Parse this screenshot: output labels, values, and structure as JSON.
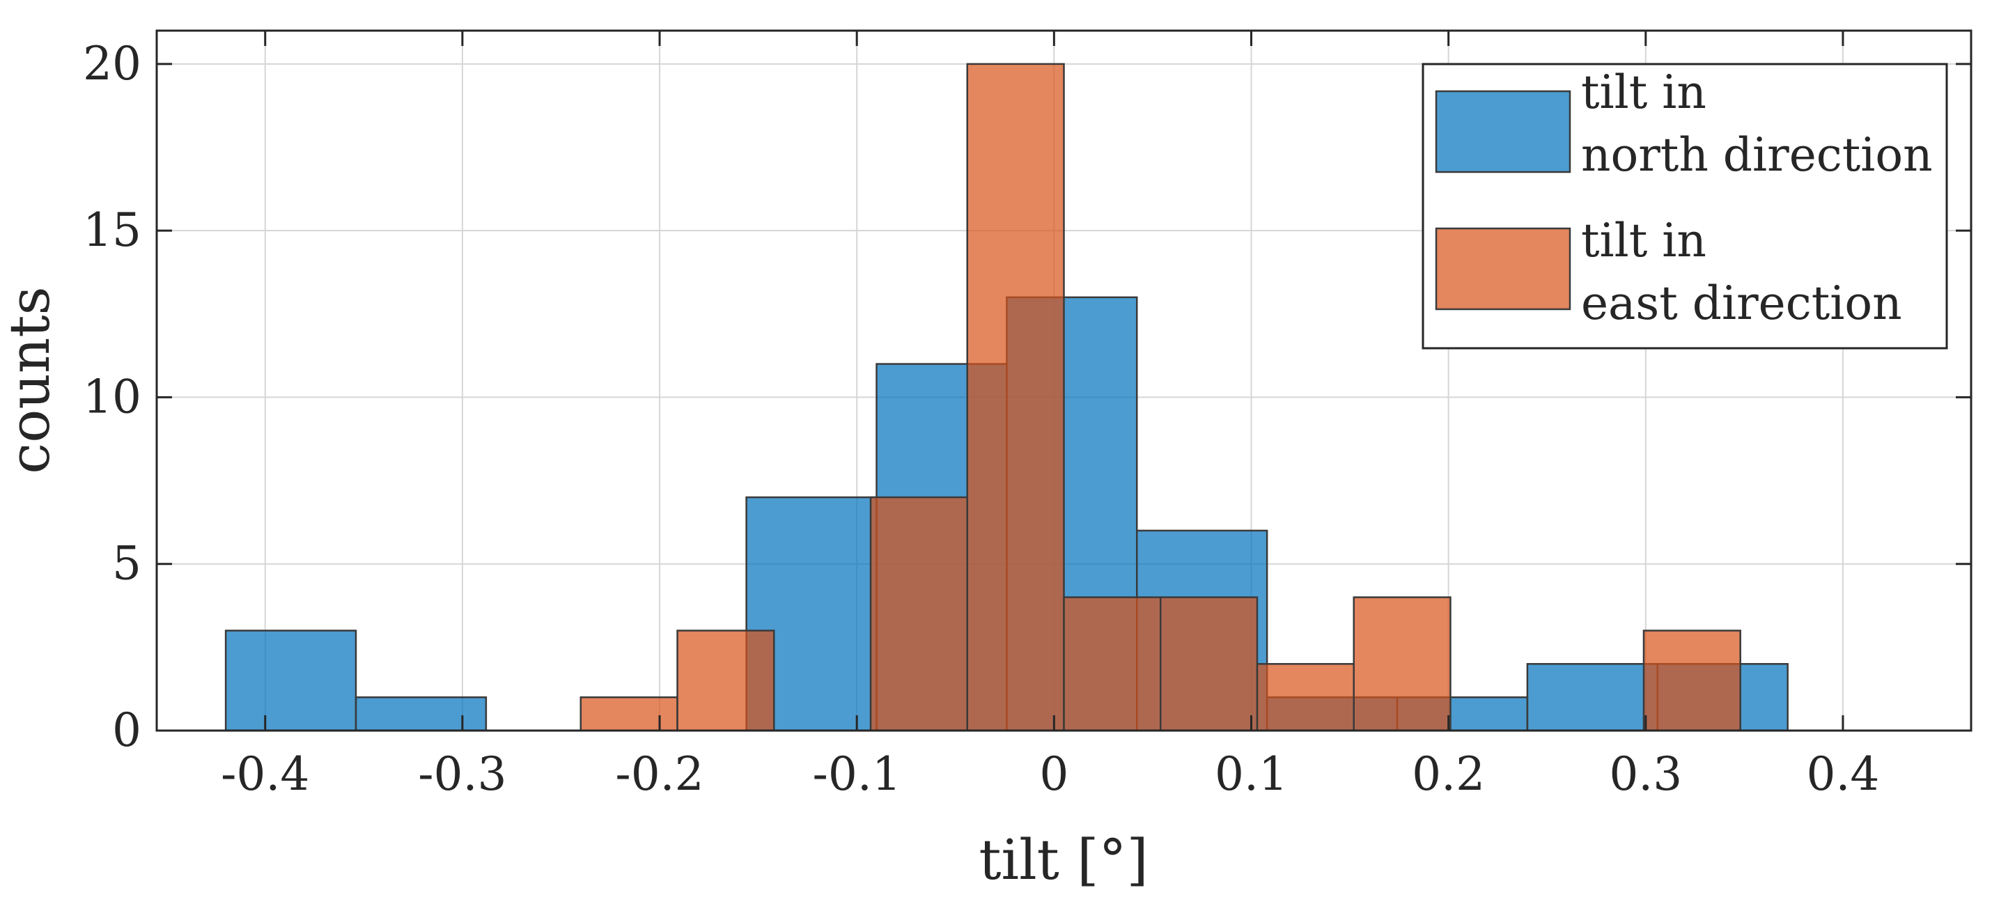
{
  "chart_data": {
    "type": "histogram",
    "title": "",
    "xlabel": "tilt [°]",
    "ylabel": "counts",
    "xlim": [
      -0.455,
      0.465
    ],
    "ylim": [
      0,
      21
    ],
    "grid": true,
    "legend_position": "top-right",
    "x_ticks": [
      -0.4,
      -0.3,
      -0.2,
      -0.1,
      0,
      0.1,
      0.2,
      0.3,
      0.4
    ],
    "x_tick_labels": [
      "-0.4",
      "-0.3",
      "-0.2",
      "-0.1",
      "0",
      "0.1",
      "0.2",
      "0.3",
      "0.4"
    ],
    "y_ticks": [
      0,
      5,
      10,
      15,
      20
    ],
    "y_tick_labels": [
      "0",
      "5",
      "10",
      "15",
      "20"
    ],
    "series": [
      {
        "name": "tilt in north direction",
        "legend_lines": [
          "tilt in",
          "north direction"
        ],
        "color": "#0072BD",
        "bins": [
          {
            "x0": -0.42,
            "x1": -0.354,
            "count": 3
          },
          {
            "x0": -0.354,
            "x1": -0.288,
            "count": 1
          },
          {
            "x0": -0.288,
            "x1": -0.222,
            "count": 0
          },
          {
            "x0": -0.222,
            "x1": -0.156,
            "count": 0
          },
          {
            "x0": -0.156,
            "x1": -0.09,
            "count": 7
          },
          {
            "x0": -0.09,
            "x1": -0.024,
            "count": 11
          },
          {
            "x0": -0.024,
            "x1": 0.042,
            "count": 13
          },
          {
            "x0": 0.042,
            "x1": 0.108,
            "count": 6
          },
          {
            "x0": 0.108,
            "x1": 0.174,
            "count": 1
          },
          {
            "x0": 0.174,
            "x1": 0.24,
            "count": 1
          },
          {
            "x0": 0.24,
            "x1": 0.306,
            "count": 2
          },
          {
            "x0": 0.306,
            "x1": 0.372,
            "count": 2
          }
        ]
      },
      {
        "name": "tilt in east direction",
        "legend_lines": [
          "tilt in",
          "east direction"
        ],
        "color": "#D95319",
        "bins": [
          {
            "x0": -0.24,
            "x1": -0.191,
            "count": 1
          },
          {
            "x0": -0.191,
            "x1": -0.142,
            "count": 3
          },
          {
            "x0": -0.142,
            "x1": -0.093,
            "count": 0
          },
          {
            "x0": -0.093,
            "x1": -0.044,
            "count": 7
          },
          {
            "x0": -0.044,
            "x1": 0.005,
            "count": 20
          },
          {
            "x0": 0.005,
            "x1": 0.054,
            "count": 4
          },
          {
            "x0": 0.054,
            "x1": 0.103,
            "count": 4
          },
          {
            "x0": 0.103,
            "x1": 0.152,
            "count": 2
          },
          {
            "x0": 0.152,
            "x1": 0.201,
            "count": 4
          },
          {
            "x0": 0.201,
            "x1": 0.25,
            "count": 0
          },
          {
            "x0": 0.25,
            "x1": 0.299,
            "count": 0
          },
          {
            "x0": 0.299,
            "x1": 0.348,
            "count": 3
          }
        ]
      }
    ]
  }
}
